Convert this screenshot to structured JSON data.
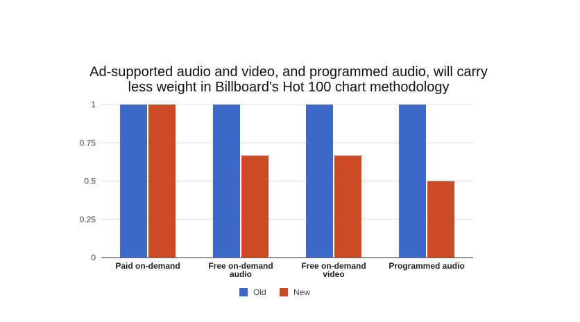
{
  "chart_data": {
    "type": "bar",
    "title_lines": [
      "Ad-supported audio and video, and programmed audio, will carry",
      "less weight in Billboard's Hot 100 chart methodology"
    ],
    "categories": [
      [
        "Paid on-demand"
      ],
      [
        "Free on-demand",
        "audio"
      ],
      [
        "Free on-demand",
        "video"
      ],
      [
        "Programmed audio"
      ]
    ],
    "series": [
      {
        "name": "Old",
        "color": "#3d67c9",
        "values": [
          1,
          1,
          1,
          1
        ]
      },
      {
        "name": "New",
        "color": "#cc4a26",
        "values": [
          1,
          0.667,
          0.667,
          0.5
        ]
      }
    ],
    "yticks": [
      "0",
      "0.25",
      "0.5",
      "0.75",
      "1"
    ],
    "ylim": [
      0,
      1
    ],
    "grid": true,
    "legend_position": "bottom",
    "xlabel": "",
    "ylabel": ""
  }
}
